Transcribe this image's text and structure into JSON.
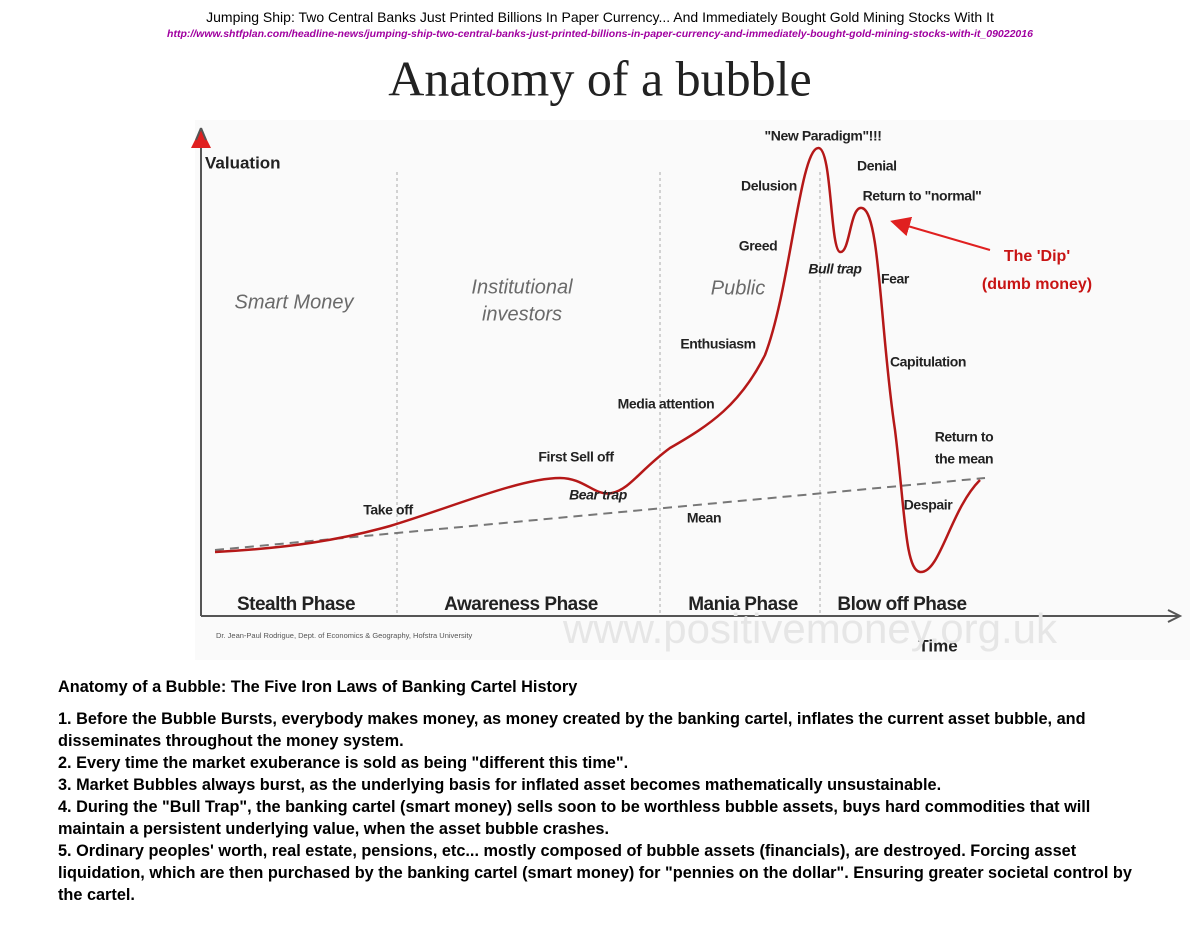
{
  "header": {
    "title": "Jumping Ship: Two Central Banks Just Printed Billions In Paper Currency... And Immediately Bought Gold Mining Stocks With It",
    "url": "http://www.shtfplan.com/headline-news/jumping-ship-two-central-banks-just-printed-billions-in-paper-currency-and-immediately-bought-gold-mining-stocks-with-it_09022016"
  },
  "diagram": {
    "title": "Anatomy of a bubble",
    "y_axis_label": "Valuation",
    "x_axis_label": "Time",
    "phases": [
      "Stealth Phase",
      "Awareness Phase",
      "Mania Phase",
      "Blow off Phase"
    ],
    "audiences": [
      {
        "lines": [
          "Smart Money"
        ]
      },
      {
        "lines": [
          "Institutional",
          "investors"
        ]
      },
      {
        "lines": [
          "Public"
        ]
      }
    ],
    "annotations": [
      {
        "lines": [
          "\"New Paradigm\"!!!"
        ]
      },
      {
        "lines": [
          "Denial"
        ]
      },
      {
        "lines": [
          "Delusion"
        ]
      },
      {
        "lines": [
          "Return to \"normal\""
        ]
      },
      {
        "lines": [
          "Greed"
        ]
      },
      {
        "lines": [
          "Bull trap"
        ]
      },
      {
        "lines": [
          "Fear"
        ]
      },
      {
        "lines": [
          "Enthusiasm"
        ]
      },
      {
        "lines": [
          "Capitulation"
        ]
      },
      {
        "lines": [
          "Media attention"
        ]
      },
      {
        "lines": [
          "First Sell off"
        ]
      },
      {
        "lines": [
          "Bear trap"
        ]
      },
      {
        "lines": [
          "Take off"
        ]
      },
      {
        "lines": [
          "Despair"
        ]
      },
      {
        "lines": [
          "Return to",
          "the mean"
        ]
      },
      {
        "lines": [
          "Mean"
        ]
      }
    ],
    "dip": {
      "lines": [
        "The 'Dip'",
        "(dumb money)"
      ]
    },
    "credit": "Dr. Jean-Paul Rodrigue, Dept. of Economics & Geography, Hofstra University",
    "watermark": "www.positivemoney.org.uk"
  },
  "text": {
    "title": "Anatomy of a Bubble: The Five Iron Laws of Banking Cartel History",
    "items": [
      "1. Before the Bubble Bursts, everybody makes money, as money created by the banking cartel, inflates the current asset bubble, and disseminates throughout the money system.",
      "2. Every time the market exuberance is sold as being \"different this time\".",
      "3. Market Bubbles always burst, as the underlying basis for inflated asset becomes mathematically unsustainable.",
      "4. During the \"Bull Trap\", the banking cartel (smart money) sells soon to be worthless bubble assets, buys hard commodities that will maintain a persistent underlying value, when the asset bubble crashes.",
      "5. Ordinary peoples' worth, real estate, pensions, etc... mostly composed of bubble assets (financials), are destroyed. Forcing asset liquidation, which are then purchased by the banking cartel (smart money) for \"pennies on the dollar\". Ensuring greater societal control by the cartel."
    ]
  }
}
